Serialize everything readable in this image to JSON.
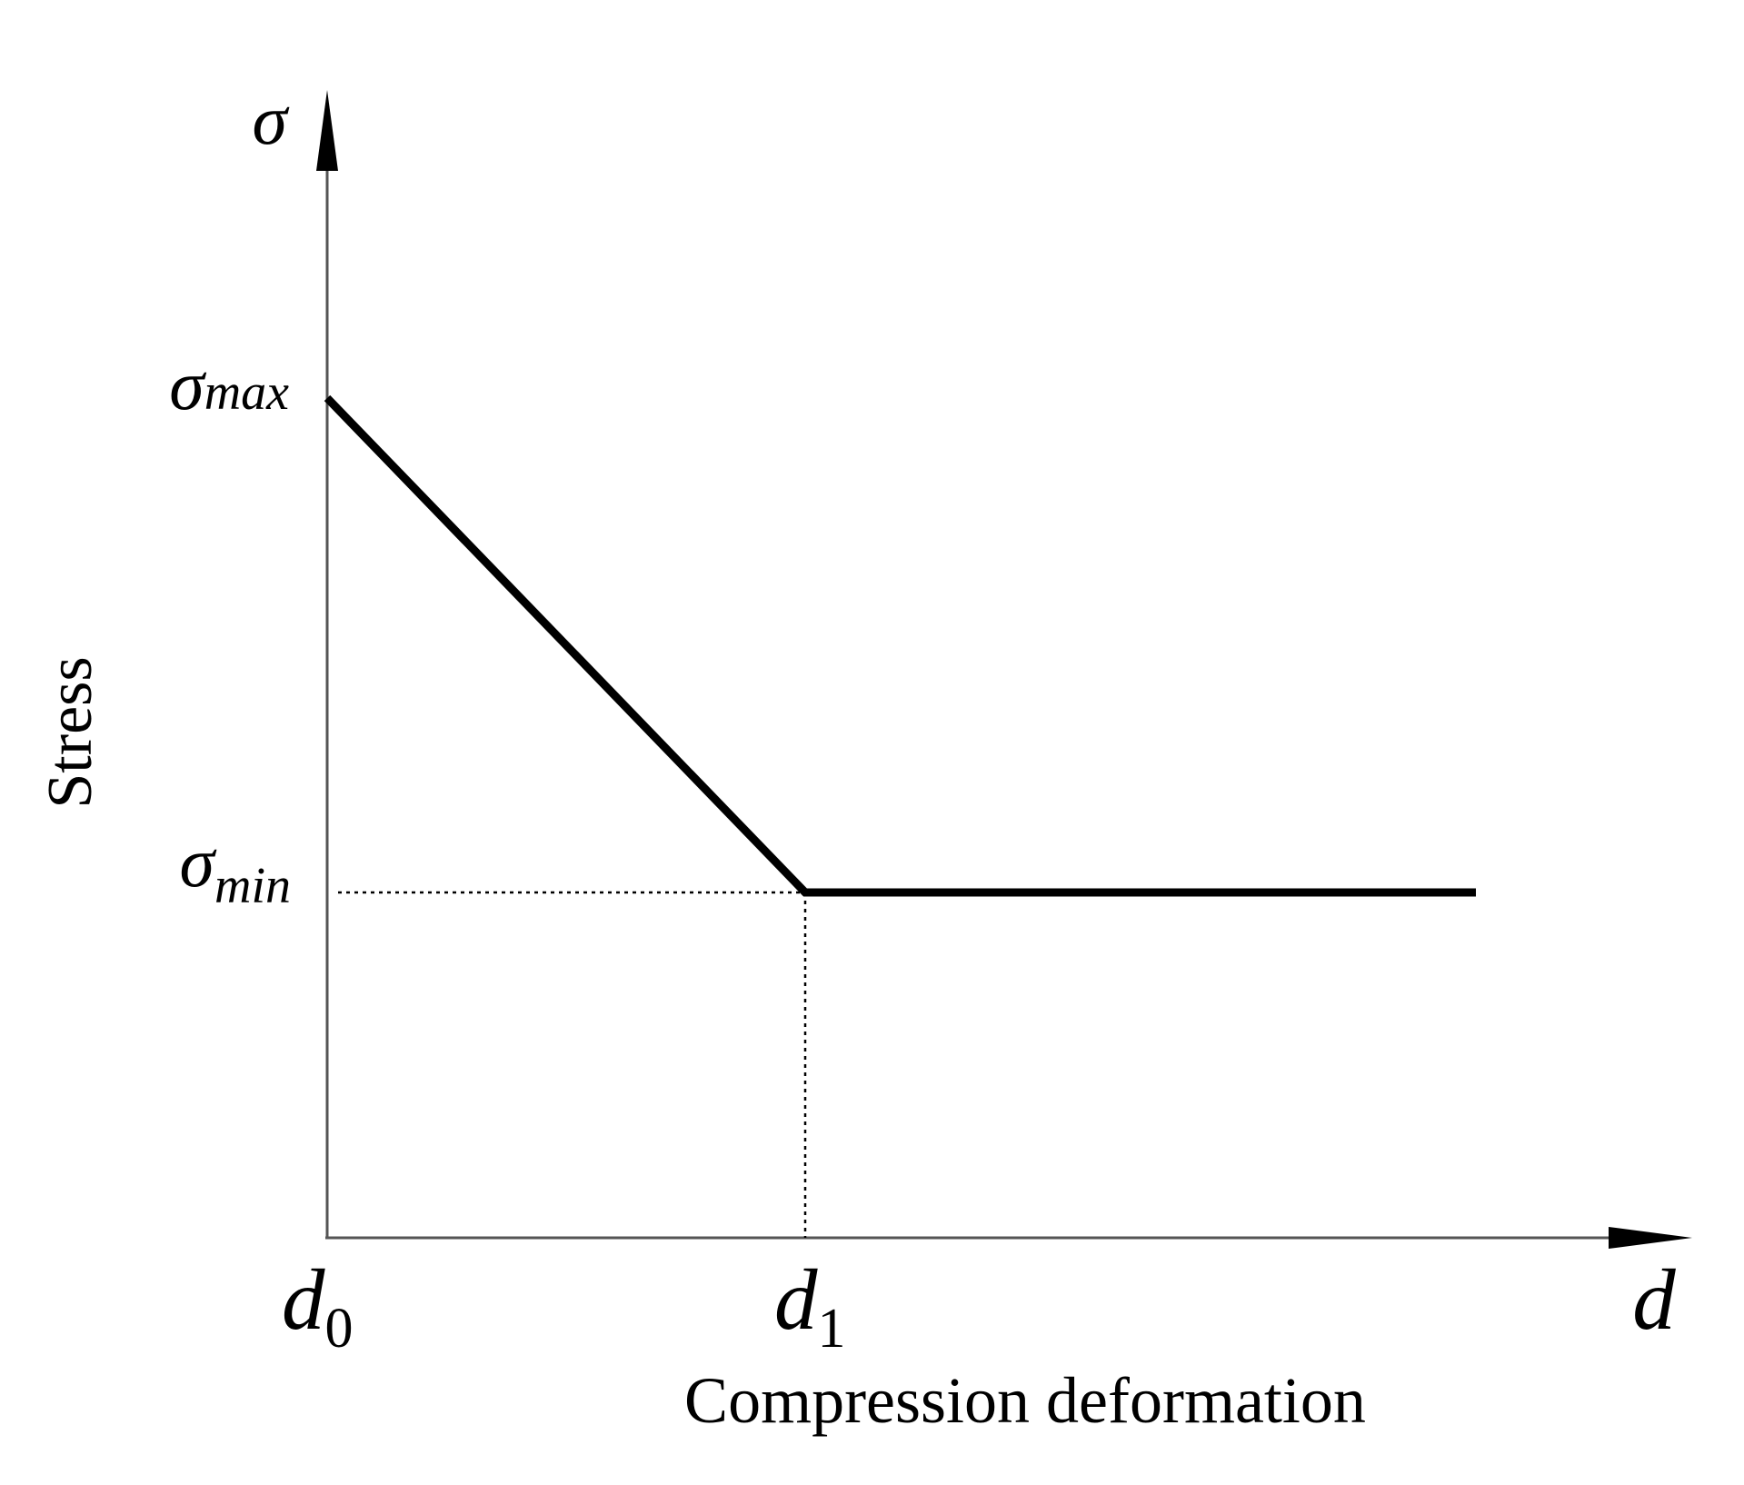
{
  "axes": {
    "y_symbol": "σ",
    "x_symbol": "d",
    "y_label": "Stress",
    "x_label": "Compression deformation"
  },
  "ticks": {
    "y": [
      {
        "symbol": "σ",
        "subscript": "max"
      },
      {
        "symbol": "σ",
        "subscript": "min"
      }
    ],
    "x": [
      {
        "symbol": "d",
        "subscript": "0"
      },
      {
        "symbol": "d",
        "subscript": "1"
      }
    ]
  }
}
